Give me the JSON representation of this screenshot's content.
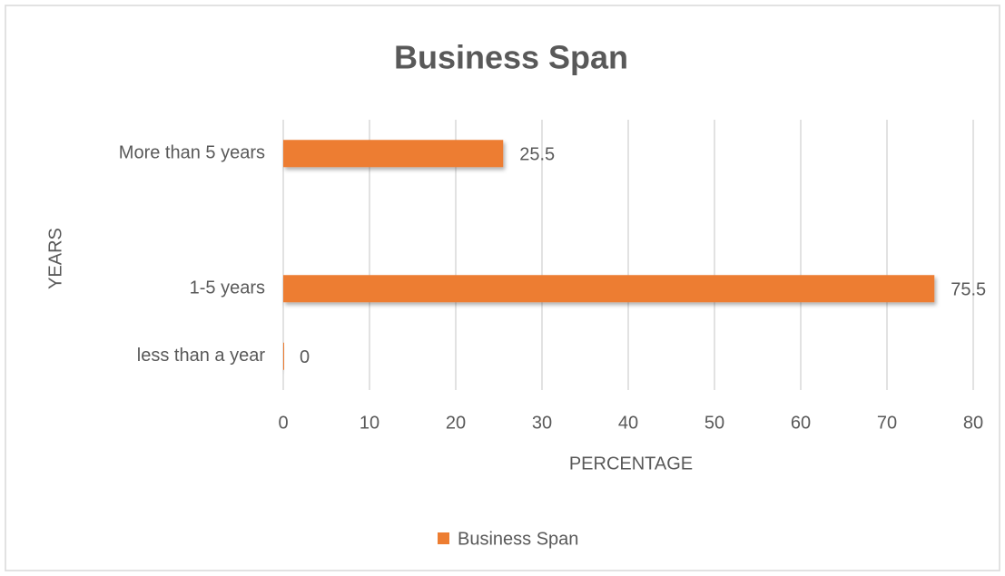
{
  "chart_data": {
    "type": "bar",
    "orientation": "horizontal",
    "title": "Business Span",
    "x_label": "PERCENTAGE",
    "y_label": "YEARS",
    "categories": [
      "less than a year",
      "1-5 years",
      null,
      "More than 5 years"
    ],
    "series": [
      {
        "name": "Business Span",
        "color": "#ed7d31",
        "values": [
          0,
          75.5,
          null,
          25.5
        ]
      }
    ],
    "xlim": [
      0,
      80
    ],
    "xticks": [
      0,
      10,
      20,
      30,
      40,
      50,
      60,
      70,
      80
    ],
    "grid": true,
    "legend": "bottom"
  }
}
